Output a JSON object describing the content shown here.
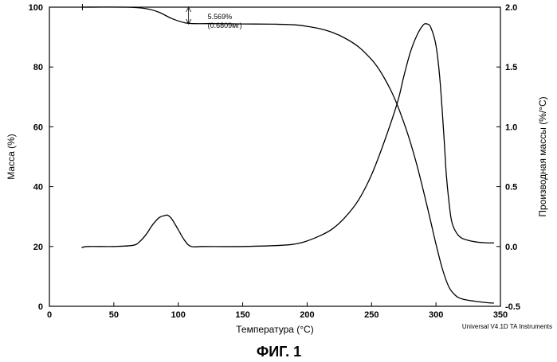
{
  "chart_data": {
    "type": "line",
    "title": "",
    "xlabel": "Температура (°C)",
    "ylabel_left": "Масса (%)",
    "ylabel_right": "Производная массы (%/°C)",
    "xlim": [
      0,
      350
    ],
    "ylim_left": [
      0,
      100
    ],
    "ylim_right": [
      -0.5,
      2.0
    ],
    "x_ticks": [
      0,
      50,
      100,
      150,
      200,
      250,
      300,
      350
    ],
    "y_left_ticks": [
      0,
      20,
      40,
      60,
      80,
      100
    ],
    "y_right_ticks": [
      -0.5,
      0.0,
      0.5,
      1.0,
      1.5,
      2.0
    ],
    "x_tick_labels": [
      "0",
      "50",
      "100",
      "150",
      "200",
      "250",
      "300",
      "350"
    ],
    "y_left_tick_labels": [
      "0",
      "20",
      "40",
      "60",
      "80",
      "100"
    ],
    "y_right_tick_labels": [
      "-0.5",
      "0.0",
      "0.5",
      "1.0",
      "1.5",
      "2.0"
    ],
    "grid": false,
    "series": [
      {
        "name": "Масса",
        "axis": "left",
        "x": [
          25,
          60,
          75,
          85,
          95,
          105,
          112,
          125,
          150,
          175,
          190,
          200,
          210,
          220,
          230,
          240,
          250,
          255,
          260,
          265,
          270,
          275,
          280,
          285,
          290,
          295,
          300,
          305,
          310,
          315,
          320,
          330,
          340,
          345
        ],
        "values": [
          100,
          100,
          99.5,
          98.3,
          96.2,
          94.8,
          94.5,
          94.5,
          94.4,
          94.3,
          94.1,
          93.6,
          92.8,
          91.5,
          89.5,
          86.7,
          82.5,
          79.7,
          76.2,
          72.2,
          67.3,
          61.5,
          55,
          47.5,
          39,
          30,
          20.8,
          12.5,
          6.5,
          3.7,
          2.5,
          1.7,
          1.2,
          1.1
        ]
      },
      {
        "name": "Производная массы",
        "axis": "right",
        "x": [
          25,
          30,
          50,
          65,
          70,
          75,
          80,
          85,
          90,
          92,
          95,
          100,
          105,
          110,
          120,
          150,
          180,
          195,
          210,
          220,
          230,
          240,
          250,
          260,
          270,
          275,
          280,
          285,
          290,
          293,
          296,
          300,
          303,
          306,
          308,
          310,
          312,
          315,
          320,
          330,
          340,
          345
        ],
        "values": [
          -0.01,
          0.0,
          0.0,
          0.01,
          0.04,
          0.1,
          0.18,
          0.24,
          0.26,
          0.26,
          0.23,
          0.14,
          0.05,
          0.0,
          0.0,
          0.0,
          0.01,
          0.03,
          0.09,
          0.15,
          0.25,
          0.39,
          0.6,
          0.88,
          1.2,
          1.42,
          1.62,
          1.76,
          1.85,
          1.86,
          1.83,
          1.68,
          1.4,
          0.95,
          0.6,
          0.38,
          0.22,
          0.13,
          0.07,
          0.04,
          0.03,
          0.03
        ]
      }
    ],
    "annotations": [
      {
        "x": 108,
        "y_from": 100,
        "y_to": 94.4,
        "label_line1": "5.569%",
        "label_line2": "(0.6809мг)"
      }
    ],
    "credit": "Universal V4.1D TA Instruments",
    "figure_caption": "ФИГ. 1"
  }
}
